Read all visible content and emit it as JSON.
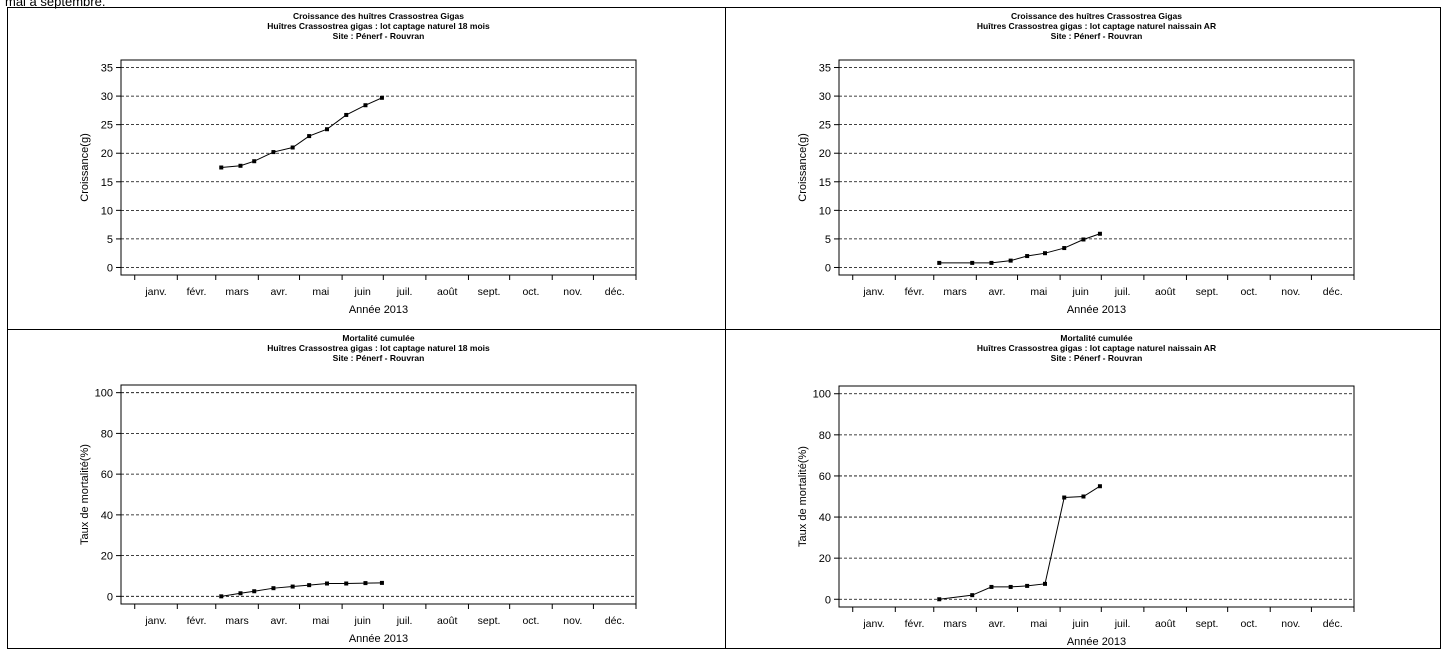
{
  "page": {
    "top_caption": "mai à septembre."
  },
  "chart_data": [
    {
      "type": "line",
      "title": "Croissance des huîtres Crassostrea Gigas",
      "subtitle_1": "Huîtres Crassostrea gigas : lot captage naturel 18 mois",
      "subtitle_2": "Site : Pénerf - Rouvran",
      "xlabel": "Année 2013",
      "ylabel": "Croissance(g)",
      "x_tick_labels": [
        "janv.",
        "févr.",
        "mars",
        "avr.",
        "mai",
        "juin",
        "juil.",
        "août",
        "sept.",
        "oct.",
        "nov.",
        "déc."
      ],
      "x_tick_days": [
        0,
        31,
        59,
        90,
        120,
        151,
        181,
        212,
        243,
        273,
        304,
        334
      ],
      "xlim": [
        -10,
        365
      ],
      "ylim": [
        0,
        35
      ],
      "yticks": [
        0,
        5,
        10,
        15,
        20,
        25,
        30,
        35
      ],
      "grid": true,
      "series": [
        {
          "x": [
            "2013-03-05",
            "2013-03-19",
            "2013-03-29",
            "2013-04-12",
            "2013-04-26",
            "2013-05-08",
            "2013-05-21",
            "2013-06-04",
            "2013-06-18",
            "2013-06-30"
          ],
          "y": [
            17.5,
            17.8,
            18.6,
            20.2,
            21.0,
            23.0,
            24.2,
            26.7,
            28.4,
            29.7
          ]
        }
      ]
    },
    {
      "type": "line",
      "title": "Croissance des huîtres Crassostrea Gigas",
      "subtitle_1": "Huîtres Crassostrea gigas : lot captage naturel naissain AR",
      "subtitle_2": "Site : Pénerf - Rouvran",
      "xlabel": "Année 2013",
      "ylabel": "Croissance(g)",
      "x_tick_labels": [
        "janv.",
        "févr.",
        "mars",
        "avr.",
        "mai",
        "juin",
        "juil.",
        "août",
        "sept.",
        "oct.",
        "nov.",
        "déc."
      ],
      "x_tick_days": [
        0,
        31,
        59,
        90,
        120,
        151,
        181,
        212,
        243,
        273,
        304,
        334
      ],
      "xlim": [
        -10,
        365
      ],
      "ylim": [
        0,
        35
      ],
      "yticks": [
        0,
        5,
        10,
        15,
        20,
        25,
        30,
        35
      ],
      "grid": true,
      "series": [
        {
          "x": [
            "2013-03-05",
            "2013-03-29",
            "2013-04-12",
            "2013-04-26",
            "2013-05-08",
            "2013-05-21",
            "2013-06-04",
            "2013-06-18",
            "2013-06-30"
          ],
          "y": [
            0.8,
            0.8,
            0.8,
            1.2,
            2.0,
            2.5,
            3.4,
            4.9,
            5.9
          ]
        }
      ]
    },
    {
      "type": "line",
      "title": "Mortalité cumulée",
      "subtitle_1": "Huîtres Crassostrea gigas : lot captage naturel 18 mois",
      "subtitle_2": "Site : Pénerf - Rouvran",
      "xlabel": "Année 2013",
      "ylabel": "Taux de mortalité(%)",
      "x_tick_labels": [
        "janv.",
        "févr.",
        "mars",
        "avr.",
        "mai",
        "juin",
        "juil.",
        "août",
        "sept.",
        "oct.",
        "nov.",
        "déc."
      ],
      "x_tick_days": [
        0,
        31,
        59,
        90,
        120,
        151,
        181,
        212,
        243,
        273,
        304,
        334
      ],
      "xlim": [
        -10,
        365
      ],
      "ylim": [
        0,
        100
      ],
      "yticks": [
        0,
        20,
        40,
        60,
        80,
        100
      ],
      "grid": true,
      "series": [
        {
          "x": [
            "2013-03-05",
            "2013-03-19",
            "2013-03-29",
            "2013-04-12",
            "2013-04-26",
            "2013-05-08",
            "2013-05-21",
            "2013-06-04",
            "2013-06-18",
            "2013-06-30"
          ],
          "y": [
            0.0,
            1.5,
            2.5,
            4.0,
            4.8,
            5.5,
            6.3,
            6.3,
            6.5,
            6.6
          ]
        }
      ]
    },
    {
      "type": "line",
      "title": "Mortalité cumulée",
      "subtitle_1": "Huîtres Crassostrea gigas : lot captage naturel naissain AR",
      "subtitle_2": "Site : Pénerf - Rouvran",
      "xlabel": "Année 2013",
      "ylabel": "Taux de mortalité(%)",
      "x_tick_labels": [
        "janv.",
        "févr.",
        "mars",
        "avr.",
        "mai",
        "juin",
        "juil.",
        "août",
        "sept.",
        "oct.",
        "nov.",
        "déc."
      ],
      "x_tick_days": [
        0,
        31,
        59,
        90,
        120,
        151,
        181,
        212,
        243,
        273,
        304,
        334
      ],
      "xlim": [
        -10,
        365
      ],
      "ylim": [
        0,
        100
      ],
      "yticks": [
        0,
        20,
        40,
        60,
        80,
        100
      ],
      "grid": true,
      "series": [
        {
          "x": [
            "2013-03-05",
            "2013-03-29",
            "2013-04-12",
            "2013-04-26",
            "2013-05-08",
            "2013-05-21",
            "2013-06-04",
            "2013-06-18",
            "2013-06-30"
          ],
          "y": [
            0.0,
            2.0,
            6.0,
            6.0,
            6.5,
            7.5,
            49.5,
            50.0,
            55.0
          ]
        }
      ]
    }
  ]
}
